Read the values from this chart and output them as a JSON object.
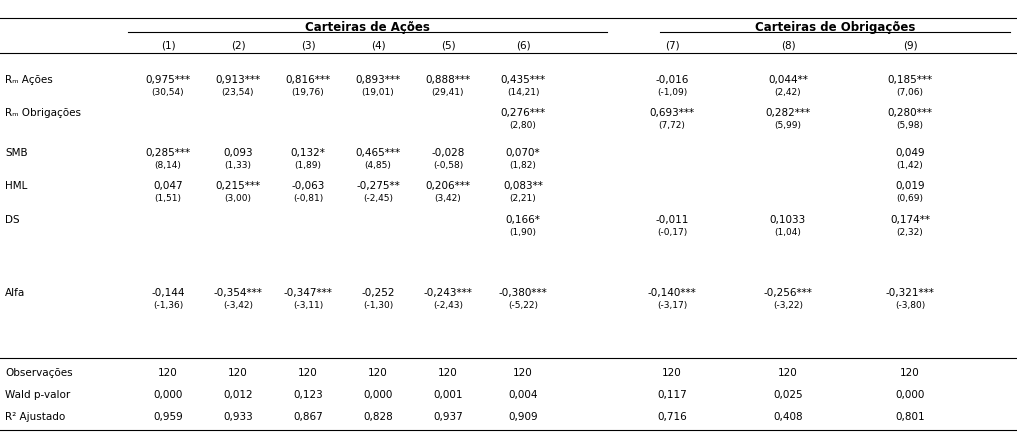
{
  "title_left": "Carteiras de Ações",
  "title_right": "Carteiras de Obrigações",
  "col_headers": [
    "(1)",
    "(2)",
    "(3)",
    "(4)",
    "(5)",
    "(6)",
    "(7)",
    "(8)",
    "(9)"
  ],
  "data": [
    [
      "0,975***",
      "0,913***",
      "0,816***",
      "0,893***",
      "0,888***",
      "0,435***",
      "-0,016",
      "0,044**",
      "0,185***"
    ],
    [
      "(30,54)",
      "(23,54)",
      "(19,76)",
      "(19,01)",
      "(29,41)",
      "(14,21)",
      "(-1,09)",
      "(2,42)",
      "(7,06)"
    ],
    [
      "",
      "",
      "",
      "",
      "",
      "0,276***",
      "0,693***",
      "0,282***",
      "0,280***"
    ],
    [
      "",
      "",
      "",
      "",
      "",
      "(2,80)",
      "(7,72)",
      "(5,99)",
      "(5,98)"
    ],
    [
      "0,285***",
      "0,093",
      "0,132*",
      "0,465***",
      "-0,028",
      "0,070*",
      "",
      "",
      "0,049"
    ],
    [
      "(8,14)",
      "(1,33)",
      "(1,89)",
      "(4,85)",
      "(-0,58)",
      "(1,82)",
      "",
      "",
      "(1,42)"
    ],
    [
      "0,047",
      "0,215***",
      "-0,063",
      "-0,275**",
      "0,206***",
      "0,083**",
      "",
      "",
      "0,019"
    ],
    [
      "(1,51)",
      "(3,00)",
      "(-0,81)",
      "(-2,45)",
      "(3,42)",
      "(2,21)",
      "",
      "",
      "(0,69)"
    ],
    [
      "",
      "",
      "",
      "",
      "",
      "0,166*",
      "-0,011",
      "0,1033",
      "0,174**"
    ],
    [
      "",
      "",
      "",
      "",
      "",
      "(1,90)",
      "(-0,17)",
      "(1,04)",
      "(2,32)"
    ],
    [
      "-0,144",
      "-0,354***",
      "-0,347***",
      "-0,252",
      "-0,243***",
      "-0,380***",
      "-0,140***",
      "-0,256***",
      "-0,321***"
    ],
    [
      "(-1,36)",
      "(-3,42)",
      "(-3,11)",
      "(-1,30)",
      "(-2,43)",
      "(-5,22)",
      "(-3,17)",
      "(-3,22)",
      "(-3,80)"
    ],
    [
      "120",
      "120",
      "120",
      "120",
      "120",
      "120",
      "120",
      "120",
      "120"
    ],
    [
      "0,000",
      "0,012",
      "0,123",
      "0,000",
      "0,001",
      "0,004",
      "0,117",
      "0,025",
      "0,000"
    ],
    [
      "0,959",
      "0,933",
      "0,867",
      "0,828",
      "0,937",
      "0,909",
      "0,716",
      "0,408",
      "0,801"
    ]
  ],
  "row_label_vals": [
    "Rₘ Ações",
    "Rₘ Obrigações",
    "SMB",
    "HML",
    "DS",
    "Alfa",
    "Observações",
    "Wald p-valor",
    "R² Ajustado"
  ],
  "figsize": [
    10.17,
    4.42
  ],
  "dpi": 100,
  "fontsize_main": 7.5,
  "fontsize_stat": 6.5,
  "fontsize_header": 8.5
}
